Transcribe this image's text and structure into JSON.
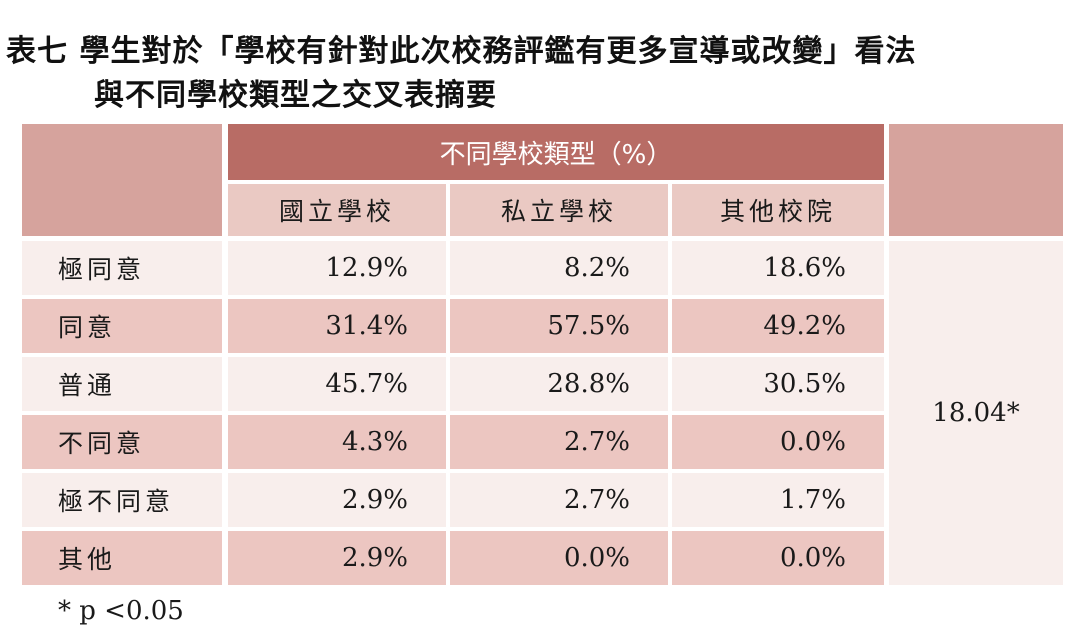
{
  "title": {
    "line1": "表七  學生對於「學校有針對此次校務評鑑有更多宣導或改變」看法",
    "line2": "與不同學校類型之交叉表摘要"
  },
  "table": {
    "group_header": "不同學校類型（%）",
    "columns": [
      "國立學校",
      "私立學校",
      "其他校院"
    ],
    "rows": [
      {
        "label": "極同意",
        "values": [
          "12.9%",
          "8.2%",
          "18.6%"
        ]
      },
      {
        "label": "同意",
        "values": [
          "31.4%",
          "57.5%",
          "49.2%"
        ]
      },
      {
        "label": "普通",
        "values": [
          "45.7%",
          "28.8%",
          "30.5%"
        ]
      },
      {
        "label": "不同意",
        "values": [
          "4.3%",
          "2.7%",
          "0.0%"
        ]
      },
      {
        "label": "極不同意",
        "values": [
          "2.9%",
          "2.7%",
          "1.7%"
        ]
      },
      {
        "label": "其他",
        "values": [
          "2.9%",
          "0.0%",
          "0.0%"
        ]
      }
    ],
    "chi_square": "18.04*"
  },
  "footnote": "* p <0.05",
  "colors": {
    "header_dark": "#b86c65",
    "header_mid": "#d6a39d",
    "subheader": "#eac9c3",
    "row_light": "#f8eeec",
    "row_dark": "#ecc6c1"
  }
}
